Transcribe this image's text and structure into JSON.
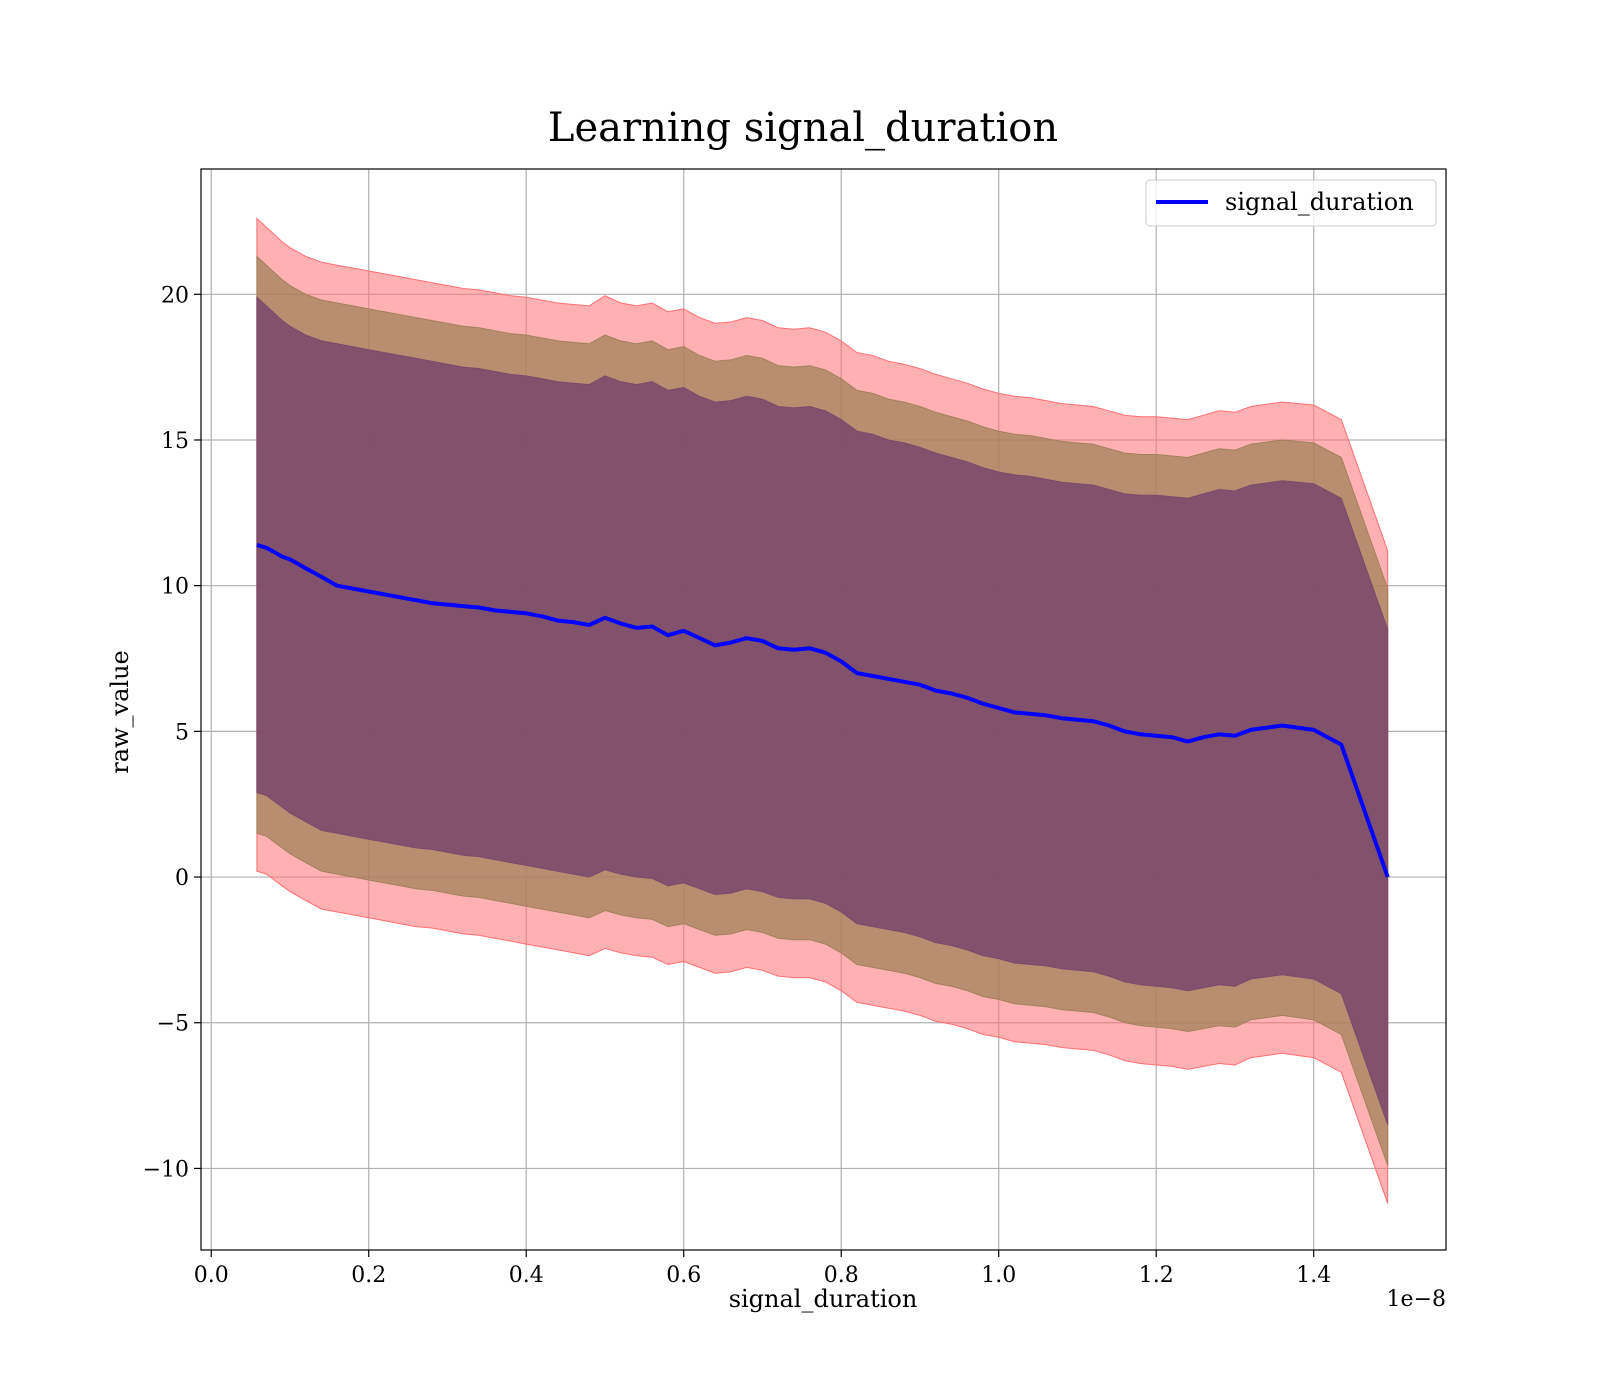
{
  "chart_data": {
    "type": "area",
    "title": "Learning signal_duration",
    "xlabel": "signal_duration",
    "ylabel": "raw_value",
    "x_offset_label": "1e−8",
    "xlim": [
      -0.013,
      1.568
    ],
    "ylim": [
      -12.8,
      24.3
    ],
    "x_ticks": [
      0.0,
      0.2,
      0.4,
      0.6,
      0.8,
      1.0,
      1.2,
      1.4
    ],
    "x_tick_labels": [
      "0.0",
      "0.2",
      "0.4",
      "0.6",
      "0.8",
      "1.0",
      "1.2",
      "1.4"
    ],
    "y_ticks": [
      -10,
      -5,
      0,
      5,
      10,
      15,
      20
    ],
    "y_tick_labels": [
      "−10",
      "−5",
      "0",
      "5",
      "10",
      "15",
      "20"
    ],
    "grid": true,
    "legend": {
      "position": "top-right",
      "entries": [
        "signal_duration"
      ]
    },
    "colors": {
      "line": "#0000ff",
      "band_outer": "#ff6f73",
      "band_middle": "#a1815a",
      "band_inner": "#7c4a6b"
    },
    "series": [
      {
        "name": "signal_duration",
        "x": [
          0.058,
          0.07,
          0.09,
          0.1,
          0.12,
          0.14,
          0.16,
          0.18,
          0.2,
          0.22,
          0.24,
          0.26,
          0.28,
          0.3,
          0.32,
          0.34,
          0.36,
          0.38,
          0.4,
          0.42,
          0.44,
          0.46,
          0.48,
          0.5,
          0.52,
          0.54,
          0.56,
          0.58,
          0.6,
          0.62,
          0.64,
          0.66,
          0.68,
          0.7,
          0.72,
          0.74,
          0.76,
          0.78,
          0.8,
          0.82,
          0.84,
          0.86,
          0.88,
          0.9,
          0.92,
          0.94,
          0.96,
          0.98,
          1.0,
          1.02,
          1.04,
          1.06,
          1.08,
          1.1,
          1.12,
          1.14,
          1.16,
          1.18,
          1.2,
          1.22,
          1.24,
          1.26,
          1.28,
          1.3,
          1.32,
          1.36,
          1.4,
          1.435,
          1.494
        ],
        "values": [
          11.4,
          11.3,
          11.0,
          10.9,
          10.6,
          10.3,
          10.0,
          9.9,
          9.8,
          9.7,
          9.6,
          9.5,
          9.4,
          9.35,
          9.3,
          9.25,
          9.15,
          9.1,
          9.05,
          8.95,
          8.8,
          8.75,
          8.65,
          8.9,
          8.7,
          8.55,
          8.6,
          8.3,
          8.45,
          8.2,
          7.95,
          8.05,
          8.2,
          8.1,
          7.85,
          7.8,
          7.85,
          7.7,
          7.4,
          7.0,
          6.9,
          6.8,
          6.7,
          6.6,
          6.4,
          6.3,
          6.15,
          5.95,
          5.8,
          5.65,
          5.6,
          5.55,
          5.45,
          5.4,
          5.35,
          5.2,
          5.0,
          4.9,
          4.85,
          4.8,
          4.65,
          4.8,
          4.9,
          4.85,
          5.05,
          5.2,
          5.05,
          4.55,
          0.0
        ],
        "band_outer_upper": [
          22.6,
          22.3,
          21.8,
          21.6,
          21.3,
          21.1,
          21.0,
          20.9,
          20.8,
          20.7,
          20.6,
          20.5,
          20.4,
          20.3,
          20.2,
          20.15,
          20.05,
          19.95,
          19.9,
          19.8,
          19.7,
          19.65,
          19.6,
          19.95,
          19.7,
          19.6,
          19.7,
          19.4,
          19.5,
          19.2,
          19.0,
          19.05,
          19.2,
          19.1,
          18.85,
          18.8,
          18.85,
          18.7,
          18.4,
          18.0,
          17.9,
          17.7,
          17.6,
          17.45,
          17.25,
          17.1,
          16.95,
          16.75,
          16.6,
          16.5,
          16.45,
          16.35,
          16.25,
          16.2,
          16.15,
          16.0,
          15.85,
          15.8,
          15.8,
          15.75,
          15.7,
          15.85,
          16.0,
          15.95,
          16.15,
          16.3,
          16.2,
          15.7,
          11.2
        ],
        "band_outer_lower": [
          0.2,
          0.1,
          -0.3,
          -0.5,
          -0.8,
          -1.1,
          -1.2,
          -1.3,
          -1.4,
          -1.5,
          -1.6,
          -1.7,
          -1.75,
          -1.85,
          -1.95,
          -2.0,
          -2.1,
          -2.2,
          -2.3,
          -2.4,
          -2.5,
          -2.6,
          -2.7,
          -2.45,
          -2.6,
          -2.7,
          -2.75,
          -3.0,
          -2.9,
          -3.1,
          -3.3,
          -3.25,
          -3.1,
          -3.2,
          -3.4,
          -3.45,
          -3.45,
          -3.6,
          -3.9,
          -4.3,
          -4.4,
          -4.5,
          -4.6,
          -4.75,
          -4.95,
          -5.05,
          -5.2,
          -5.4,
          -5.5,
          -5.65,
          -5.7,
          -5.75,
          -5.85,
          -5.9,
          -5.95,
          -6.1,
          -6.3,
          -6.4,
          -6.45,
          -6.5,
          -6.6,
          -6.5,
          -6.4,
          -6.45,
          -6.2,
          -6.05,
          -6.2,
          -6.7,
          -11.2
        ],
        "band_middle_upper": [
          21.3,
          21.0,
          20.5,
          20.3,
          20.0,
          19.8,
          19.7,
          19.6,
          19.5,
          19.4,
          19.3,
          19.2,
          19.1,
          19.0,
          18.9,
          18.85,
          18.75,
          18.65,
          18.6,
          18.5,
          18.4,
          18.35,
          18.3,
          18.6,
          18.4,
          18.3,
          18.4,
          18.1,
          18.2,
          17.9,
          17.7,
          17.75,
          17.9,
          17.8,
          17.55,
          17.5,
          17.55,
          17.4,
          17.1,
          16.7,
          16.6,
          16.4,
          16.3,
          16.15,
          15.95,
          15.8,
          15.65,
          15.45,
          15.3,
          15.2,
          15.15,
          15.05,
          14.95,
          14.9,
          14.85,
          14.7,
          14.55,
          14.5,
          14.5,
          14.45,
          14.4,
          14.55,
          14.7,
          14.65,
          14.85,
          15.0,
          14.9,
          14.4,
          9.9
        ],
        "band_middle_lower": [
          1.5,
          1.4,
          1.0,
          0.8,
          0.5,
          0.2,
          0.1,
          0.0,
          -0.1,
          -0.2,
          -0.3,
          -0.4,
          -0.45,
          -0.55,
          -0.65,
          -0.7,
          -0.8,
          -0.9,
          -1.0,
          -1.1,
          -1.2,
          -1.3,
          -1.4,
          -1.15,
          -1.3,
          -1.4,
          -1.45,
          -1.7,
          -1.6,
          -1.8,
          -2.0,
          -1.95,
          -1.8,
          -1.9,
          -2.1,
          -2.15,
          -2.15,
          -2.3,
          -2.6,
          -3.0,
          -3.1,
          -3.2,
          -3.3,
          -3.45,
          -3.65,
          -3.75,
          -3.9,
          -4.1,
          -4.2,
          -4.35,
          -4.4,
          -4.45,
          -4.55,
          -4.6,
          -4.65,
          -4.8,
          -5.0,
          -5.1,
          -5.15,
          -5.2,
          -5.3,
          -5.2,
          -5.1,
          -5.15,
          -4.9,
          -4.75,
          -4.9,
          -5.4,
          -9.9
        ],
        "band_inner_upper": [
          19.9,
          19.6,
          19.1,
          18.9,
          18.6,
          18.4,
          18.3,
          18.2,
          18.1,
          18.0,
          17.9,
          17.8,
          17.7,
          17.6,
          17.5,
          17.45,
          17.35,
          17.25,
          17.2,
          17.1,
          17.0,
          16.95,
          16.9,
          17.2,
          17.0,
          16.9,
          17.0,
          16.7,
          16.8,
          16.5,
          16.3,
          16.35,
          16.5,
          16.4,
          16.15,
          16.1,
          16.15,
          16.0,
          15.7,
          15.3,
          15.2,
          15.0,
          14.9,
          14.75,
          14.55,
          14.4,
          14.25,
          14.05,
          13.9,
          13.8,
          13.75,
          13.65,
          13.55,
          13.5,
          13.45,
          13.3,
          13.15,
          13.1,
          13.1,
          13.05,
          13.0,
          13.15,
          13.3,
          13.25,
          13.45,
          13.6,
          13.5,
          13.0,
          8.5
        ],
        "band_inner_lower": [
          2.9,
          2.8,
          2.4,
          2.2,
          1.9,
          1.6,
          1.5,
          1.4,
          1.3,
          1.2,
          1.1,
          1.0,
          0.95,
          0.85,
          0.75,
          0.7,
          0.6,
          0.5,
          0.4,
          0.3,
          0.2,
          0.1,
          0.0,
          0.25,
          0.1,
          0.0,
          -0.05,
          -0.3,
          -0.2,
          -0.4,
          -0.6,
          -0.55,
          -0.4,
          -0.5,
          -0.7,
          -0.75,
          -0.75,
          -0.9,
          -1.2,
          -1.6,
          -1.7,
          -1.8,
          -1.9,
          -2.05,
          -2.25,
          -2.35,
          -2.5,
          -2.7,
          -2.8,
          -2.95,
          -3.0,
          -3.05,
          -3.15,
          -3.2,
          -3.25,
          -3.4,
          -3.6,
          -3.7,
          -3.75,
          -3.8,
          -3.9,
          -3.8,
          -3.7,
          -3.75,
          -3.5,
          -3.35,
          -3.5,
          -4.0,
          -8.5
        ]
      }
    ]
  }
}
